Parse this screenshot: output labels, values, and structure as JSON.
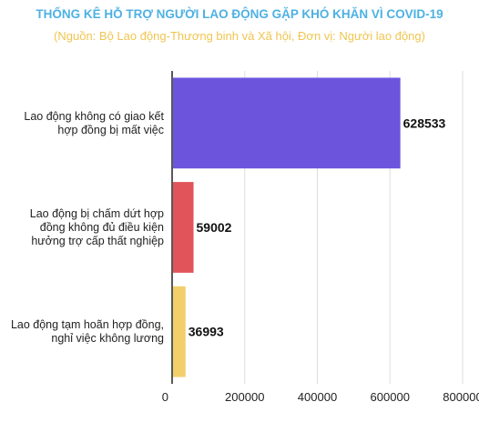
{
  "chart_data": {
    "type": "bar",
    "orientation": "horizontal",
    "title": "THỐNG KÊ HỖ TRỢ NGƯỜI LAO ĐỘNG GẶP KHÓ KHĂN VÌ COVID-19",
    "subtitle": "(Nguồn: Bộ Lao động-Thương binh và Xã hội, Đơn vị: Người lao động)",
    "categories": [
      [
        "Lao động không có giao kết",
        "hợp đồng bị mất việc"
      ],
      [
        "Lao động bị chấm dứt hợp",
        "đồng không đủ điều kiện",
        "hưởng trợ cấp thất nghiệp"
      ],
      [
        "Lao động tạm hoãn hợp đồng,",
        "nghỉ việc không lương"
      ]
    ],
    "values": [
      628533,
      59002,
      36993
    ],
    "value_labels": [
      "628533",
      "59002",
      "36993"
    ],
    "colors": [
      "#6c55dc",
      "#e0545a",
      "#f2cf6b"
    ],
    "xlim": [
      0,
      800000
    ],
    "xticks": [
      0,
      200000,
      400000,
      600000,
      800000
    ],
    "xtick_labels": [
      "0",
      "200000",
      "400000",
      "600000",
      "800000"
    ],
    "grid": true,
    "legend": "none"
  }
}
